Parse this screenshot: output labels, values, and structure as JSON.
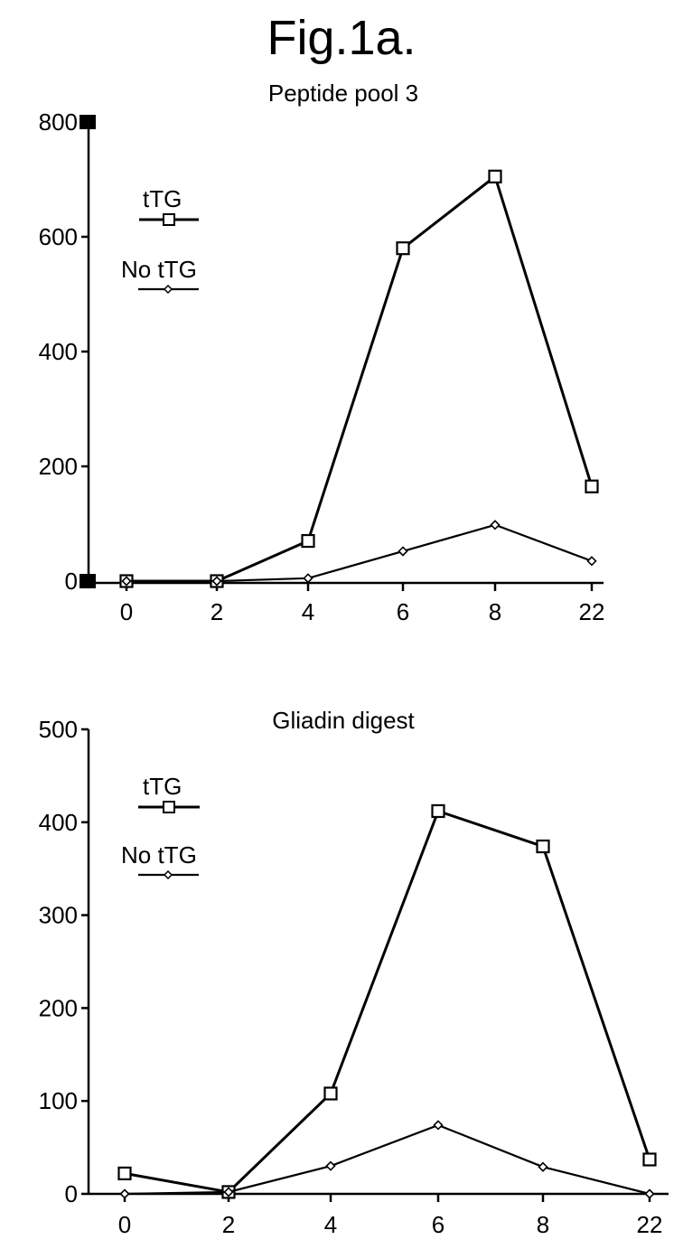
{
  "figure_title": "Fig.1a.",
  "chart_data": [
    {
      "type": "line",
      "title": "Peptide pool 3",
      "xlabel": "",
      "ylabel": "",
      "categories": [
        "0",
        "2",
        "4",
        "6",
        "8",
        "22"
      ],
      "ylim": [
        0,
        800
      ],
      "yticks": [
        0,
        200,
        400,
        600,
        800
      ],
      "series": [
        {
          "name": "tTG",
          "marker": "square",
          "values": [
            0,
            0,
            70,
            580,
            705,
            165
          ]
        },
        {
          "name": "No tTG",
          "marker": "diamond",
          "values": [
            0,
            0,
            5,
            52,
            98,
            35
          ]
        }
      ],
      "legend_position": "top-left",
      "grid": false
    },
    {
      "type": "line",
      "title": "Gliadin digest",
      "xlabel": "",
      "ylabel": "",
      "categories": [
        "0",
        "2",
        "4",
        "6",
        "8",
        "22"
      ],
      "ylim": [
        0,
        500
      ],
      "yticks": [
        0,
        100,
        200,
        300,
        400,
        500
      ],
      "series": [
        {
          "name": "tTG",
          "marker": "square",
          "values": [
            22,
            2,
            108,
            412,
            374,
            37
          ]
        },
        {
          "name": "No tTG",
          "marker": "diamond",
          "values": [
            0,
            2,
            30,
            74,
            29,
            0
          ]
        }
      ],
      "legend_position": "top-left",
      "grid": false
    }
  ]
}
